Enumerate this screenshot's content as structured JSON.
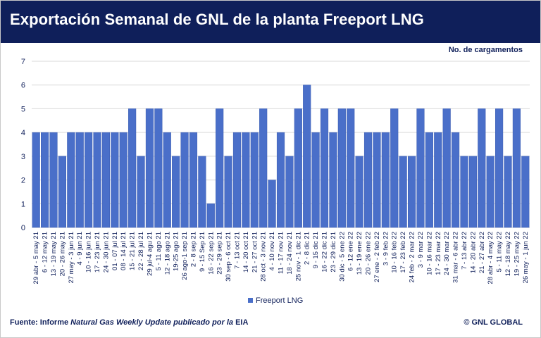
{
  "header": {
    "title": "Exportación Semanal de GNL de la planta Freeport LNG"
  },
  "footer": {
    "source_prefix": "Fuente: Informe ",
    "source_italic": "Natural Gas Weekly Update publicado por la",
    "source_suffix": " EIA",
    "copyright": "© GNL GLOBAL"
  },
  "colors": {
    "title_bar": "#0f1f5a",
    "bar": "#4a6fc9",
    "bar_edge": "#3a5bb0",
    "grid": "#d9d9d9",
    "text": "#0f1f5a"
  },
  "chart_data": {
    "type": "bar",
    "ylabel": "No. de cargamentos",
    "ylim": [
      0,
      7
    ],
    "yticks": [
      0,
      1,
      2,
      3,
      4,
      5,
      6,
      7
    ],
    "grid": true,
    "legend_position": "bottom",
    "categories": [
      "29 abr - 5 may 21",
      "6 - 12 may 21",
      "13 - 19 may 21",
      "20 - 26 may 21",
      "27 may - 3 jun 21",
      "4 - 9 jun 21",
      "10 - 16 jun 21",
      "17 - 23 jun 21",
      "24 - 30 jun 21",
      "01 - 07 jul 21",
      "08 - 14 jul 21",
      "15 - 21 jul 21",
      "22 - 28 jul 21",
      "29 jul-4 agu 21",
      "5 - 11 ago 21",
      "12 - 18 ago 21",
      "19-25 ago 21",
      "26 ago-1 sep 21",
      "2 - 8 sep 21",
      "9 - 15 Sep 21",
      "16 - 22 sep 21",
      "23 - 29 sep 21",
      "30 sep - 6 oct 21",
      "7 - 13 oct 21",
      "14 - 20 oct 21",
      "21 - 27 oct 21",
      "28 oct - 3 nov 21",
      "4 - 10 nov 21",
      "11 - 17 nov 21",
      "18 - 24 nov 21",
      "25 nov - 1 dic 21",
      "2 - 8 dic 21",
      "9 - 15 dic 21",
      "16 - 22 dic 21",
      "23 - 29 dic 21",
      "30 dic - 5 ene 22",
      "6 - 12 ene 22",
      "13 - 19 ene 22",
      "20 - 26 ene 22",
      "27 ene - 2 feb 22",
      "3 - 9 feb 22",
      "10 - 16 feb 22",
      "17 - 23 feb 22",
      "24 feb - 2 mar 22",
      "3 - 9 mar 22",
      "10 - 16 mar 22",
      "17 - 23 mar 22",
      "24 - 30 mar 22",
      "31 mar - 6 abr 22",
      "7 - 13 abr 22",
      "14 - 20 abr 22",
      "21 - 27 abr 22",
      "28 abr - 4 may 22",
      "5 - 11 may 22",
      "12 - 18 may 22",
      "19 - 25 may 22",
      "26 may - 1 jun 22"
    ],
    "series": [
      {
        "name": "Freeport LNG",
        "values": [
          4,
          4,
          4,
          3,
          4,
          4,
          4,
          4,
          4,
          4,
          4,
          5,
          3,
          5,
          5,
          4,
          3,
          4,
          4,
          3,
          1,
          5,
          3,
          4,
          4,
          4,
          5,
          2,
          4,
          3,
          5,
          6,
          4,
          5,
          4,
          5,
          5,
          3,
          4,
          4,
          4,
          5,
          3,
          3,
          5,
          4,
          4,
          5,
          4,
          3,
          3,
          5,
          3,
          5,
          3,
          5,
          3
        ]
      }
    ]
  }
}
